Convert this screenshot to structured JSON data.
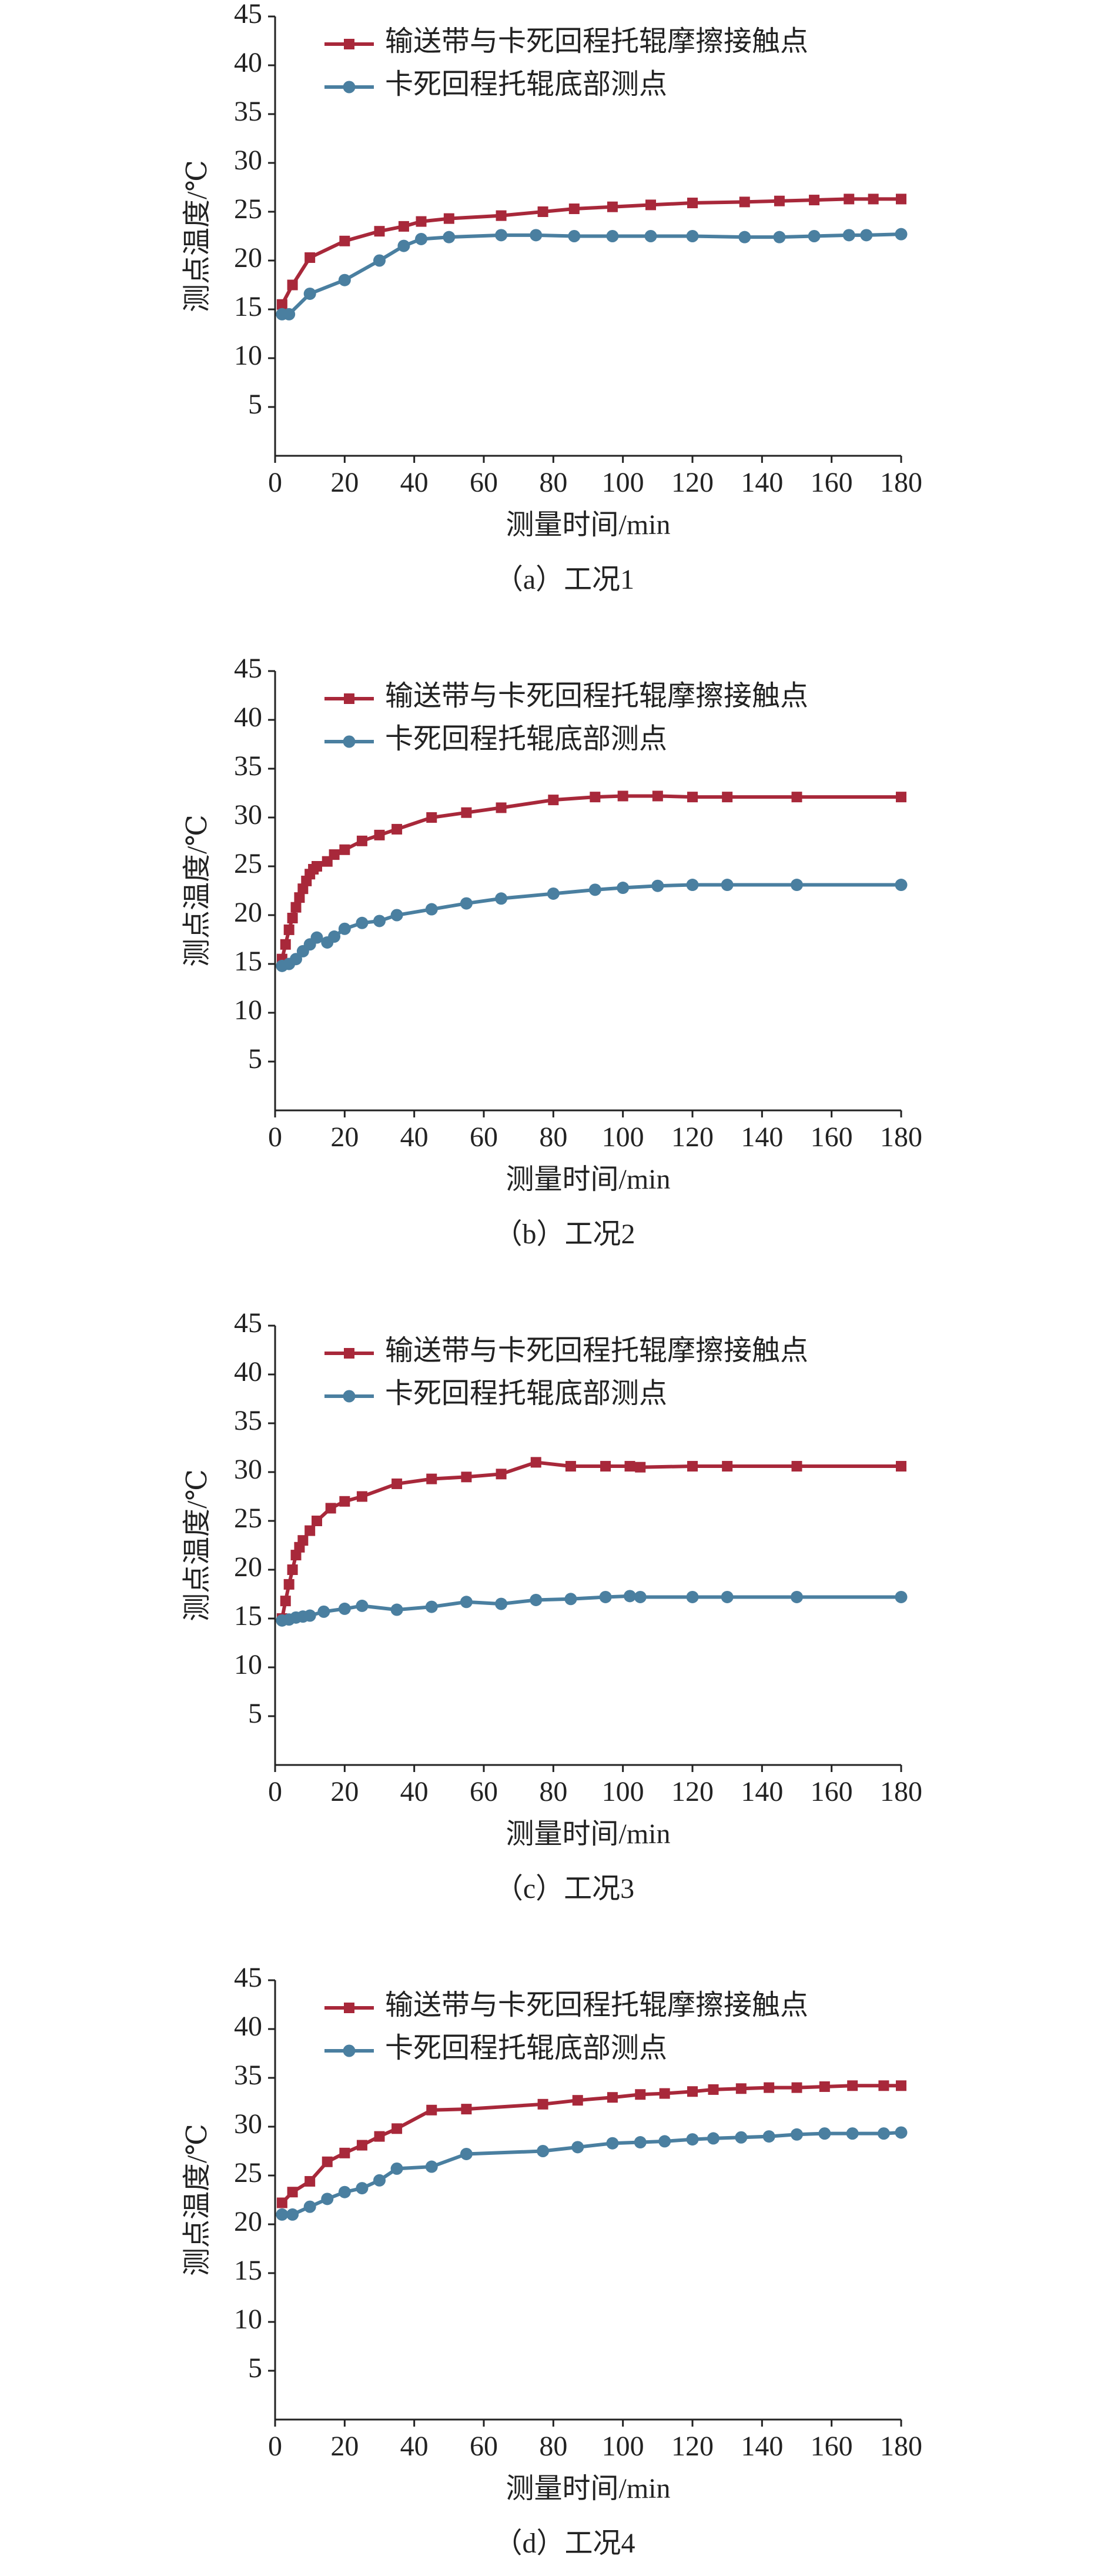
{
  "chart_data": [
    {
      "type": "line",
      "caption": "（a）工况1",
      "xlabel": "测量时间/min",
      "ylabel": "测点温度/℃",
      "xlim": [
        0,
        180
      ],
      "ylim": [
        0,
        45
      ],
      "xticks": [
        0,
        20,
        40,
        60,
        80,
        100,
        120,
        140,
        160,
        180
      ],
      "yticks": [
        5,
        10,
        15,
        20,
        25,
        30,
        35,
        40,
        45
      ],
      "legend": "upper left",
      "series": [
        {
          "name": "输送带与卡死回程托辊摩擦接触点",
          "color": "#a8283a",
          "marker": "square",
          "x": [
            2,
            5,
            10,
            20,
            30,
            37,
            42,
            50,
            65,
            77,
            86,
            97,
            108,
            120,
            135,
            145,
            155,
            165,
            172,
            180
          ],
          "values": [
            15.5,
            17.5,
            20.3,
            22,
            23,
            23.5,
            24,
            24.3,
            24.6,
            25,
            25.3,
            25.5,
            25.7,
            25.9,
            26,
            26.1,
            26.2,
            26.3,
            26.3,
            26.3
          ]
        },
        {
          "name": "卡死回程托辊底部测点",
          "color": "#4a7fa0",
          "marker": "circle",
          "x": [
            2,
            4,
            10,
            20,
            30,
            37,
            42,
            50,
            65,
            75,
            86,
            97,
            108,
            120,
            135,
            145,
            155,
            165,
            170,
            180
          ],
          "values": [
            14.5,
            14.5,
            16.6,
            18,
            20,
            21.5,
            22.2,
            22.4,
            22.6,
            22.6,
            22.5,
            22.5,
            22.5,
            22.5,
            22.4,
            22.4,
            22.5,
            22.6,
            22.6,
            22.7
          ]
        }
      ]
    },
    {
      "type": "line",
      "caption": "（b）工况2",
      "xlabel": "测量时间/min",
      "ylabel": "测点温度/℃",
      "xlim": [
        0,
        180
      ],
      "ylim": [
        0,
        45
      ],
      "xticks": [
        0,
        20,
        40,
        60,
        80,
        100,
        120,
        140,
        160,
        180
      ],
      "yticks": [
        5,
        10,
        15,
        20,
        25,
        30,
        35,
        40,
        45
      ],
      "legend": "upper left",
      "series": [
        {
          "name": "输送带与卡死回程托辊摩擦接触点",
          "color": "#a8283a",
          "marker": "square",
          "x": [
            2,
            3,
            4,
            5,
            6,
            7,
            8,
            9,
            10,
            11,
            12,
            15,
            17,
            20,
            25,
            30,
            35,
            45,
            55,
            65,
            80,
            92,
            100,
            110,
            120,
            130,
            150,
            180
          ],
          "values": [
            15.5,
            17,
            18.5,
            19.7,
            20.8,
            21.8,
            22.7,
            23.5,
            24.2,
            24.7,
            25,
            25.5,
            26.2,
            26.7,
            27.6,
            28.2,
            28.8,
            30,
            30.5,
            31,
            31.8,
            32.1,
            32.2,
            32.2,
            32.1,
            32.1,
            32.1,
            32.1
          ]
        },
        {
          "name": "卡死回程托辊底部测点",
          "color": "#4a7fa0",
          "marker": "circle",
          "x": [
            2,
            4,
            6,
            8,
            10,
            12,
            15,
            17,
            20,
            25,
            30,
            35,
            45,
            55,
            65,
            80,
            92,
            100,
            110,
            120,
            130,
            150,
            180
          ],
          "values": [
            14.8,
            15,
            15.5,
            16.3,
            17,
            17.7,
            17.2,
            17.8,
            18.6,
            19.2,
            19.4,
            20,
            20.6,
            21.2,
            21.7,
            22.2,
            22.6,
            22.8,
            23,
            23.1,
            23.1,
            23.1,
            23.1
          ]
        }
      ]
    },
    {
      "type": "line",
      "caption": "（c）工况3",
      "xlabel": "测量时间/min",
      "ylabel": "测点温度/℃",
      "xlim": [
        0,
        180
      ],
      "ylim": [
        0,
        45
      ],
      "xticks": [
        0,
        20,
        40,
        60,
        80,
        100,
        120,
        140,
        160,
        180
      ],
      "yticks": [
        5,
        10,
        15,
        20,
        25,
        30,
        35,
        40,
        45
      ],
      "legend": "upper left",
      "series": [
        {
          "name": "输送带与卡死回程托辊摩擦接触点",
          "color": "#a8283a",
          "marker": "square",
          "x": [
            2,
            3,
            4,
            5,
            6,
            7,
            8,
            10,
            12,
            16,
            20,
            25,
            35,
            45,
            55,
            65,
            75,
            85,
            95,
            102,
            105,
            120,
            130,
            150,
            180
          ],
          "values": [
            15,
            16.8,
            18.5,
            20,
            21.5,
            22.3,
            23,
            24,
            25,
            26.3,
            27,
            27.5,
            28.8,
            29.3,
            29.5,
            29.8,
            31,
            30.6,
            30.6,
            30.6,
            30.5,
            30.6,
            30.6,
            30.6,
            30.6
          ]
        },
        {
          "name": "卡死回程托辊底部测点",
          "color": "#4a7fa0",
          "marker": "circle",
          "x": [
            2,
            4,
            6,
            8,
            10,
            14,
            20,
            25,
            35,
            45,
            55,
            65,
            75,
            85,
            95,
            102,
            105,
            120,
            130,
            150,
            180
          ],
          "values": [
            14.8,
            14.9,
            15.1,
            15.2,
            15.3,
            15.7,
            16,
            16.3,
            15.9,
            16.2,
            16.7,
            16.5,
            16.9,
            17,
            17.2,
            17.3,
            17.2,
            17.2,
            17.2,
            17.2,
            17.2
          ]
        }
      ]
    },
    {
      "type": "line",
      "caption": "（d）工况4",
      "xlabel": "测量时间/min",
      "ylabel": "测点温度/℃",
      "xlim": [
        0,
        180
      ],
      "ylim": [
        0,
        45
      ],
      "xticks": [
        0,
        20,
        40,
        60,
        80,
        100,
        120,
        140,
        160,
        180
      ],
      "yticks": [
        5,
        10,
        15,
        20,
        25,
        30,
        35,
        40,
        45
      ],
      "legend": "upper left",
      "series": [
        {
          "name": "输送带与卡死回程托辊摩擦接触点",
          "color": "#a8283a",
          "marker": "square",
          "x": [
            2,
            5,
            10,
            15,
            20,
            25,
            30,
            35,
            45,
            55,
            77,
            87,
            97,
            105,
            112,
            120,
            126,
            134,
            142,
            150,
            158,
            166,
            175,
            180
          ],
          "values": [
            22.2,
            23.3,
            24.4,
            26.4,
            27.3,
            28.1,
            29,
            29.8,
            31.7,
            31.8,
            32.3,
            32.7,
            33,
            33.3,
            33.4,
            33.6,
            33.8,
            33.9,
            34,
            34,
            34.1,
            34.2,
            34.2,
            34.2
          ]
        },
        {
          "name": "卡死回程托辊底部测点",
          "color": "#4a7fa0",
          "marker": "circle",
          "x": [
            2,
            5,
            10,
            15,
            20,
            25,
            30,
            35,
            45,
            55,
            77,
            87,
            97,
            105,
            112,
            120,
            126,
            134,
            142,
            150,
            158,
            166,
            175,
            180
          ],
          "values": [
            21,
            21,
            21.8,
            22.6,
            23.3,
            23.7,
            24.5,
            25.7,
            25.9,
            27.2,
            27.5,
            27.9,
            28.3,
            28.4,
            28.5,
            28.7,
            28.8,
            28.9,
            29,
            29.2,
            29.3,
            29.3,
            29.3,
            29.4
          ]
        }
      ]
    }
  ]
}
